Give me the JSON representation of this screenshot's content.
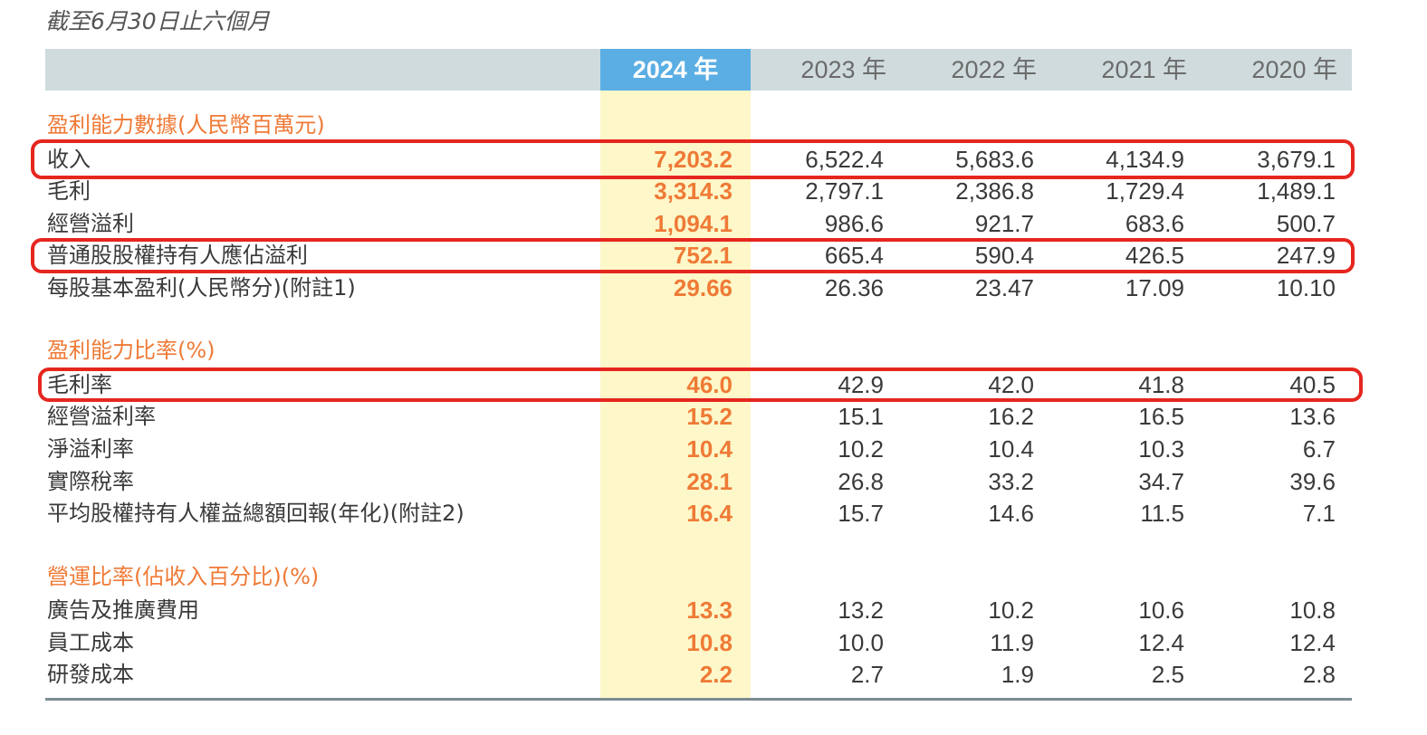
{
  "caption": "截至6月30日止六個月",
  "columns": [
    "2024 年",
    "2023 年",
    "2022 年",
    "2021 年",
    "2020 年"
  ],
  "colors": {
    "accent": "#ef7a36",
    "header_highlight": "#5aaee3",
    "header_bg": "#cfdbdd",
    "column_highlight": "#fdf7c9",
    "annotation": "#e5261f"
  },
  "sections": [
    {
      "title": "盈利能力數據(人民幣百萬元)",
      "rows": [
        {
          "label": "收入",
          "values": [
            "7,203.2",
            "6,522.4",
            "5,683.6",
            "4,134.9",
            "3,679.1"
          ]
        },
        {
          "label": "毛利",
          "values": [
            "3,314.3",
            "2,797.1",
            "2,386.8",
            "1,729.4",
            "1,489.1"
          ]
        },
        {
          "label": "經營溢利",
          "values": [
            "1,094.1",
            "986.6",
            "921.7",
            "683.6",
            "500.7"
          ]
        },
        {
          "label": "普通股股權持有人應佔溢利",
          "values": [
            "752.1",
            "665.4",
            "590.4",
            "426.5",
            "247.9"
          ]
        },
        {
          "label": "每股基本盈利(人民幣分)(附註1)",
          "values": [
            "29.66",
            "26.36",
            "23.47",
            "17.09",
            "10.10"
          ]
        }
      ]
    },
    {
      "title": "盈利能力比率(%)",
      "rows": [
        {
          "label": "毛利率",
          "values": [
            "46.0",
            "42.9",
            "42.0",
            "41.8",
            "40.5"
          ]
        },
        {
          "label": "經營溢利率",
          "values": [
            "15.2",
            "15.1",
            "16.2",
            "16.5",
            "13.6"
          ]
        },
        {
          "label": "淨溢利率",
          "values": [
            "10.4",
            "10.2",
            "10.4",
            "10.3",
            "6.7"
          ]
        },
        {
          "label": "實際稅率",
          "values": [
            "28.1",
            "26.8",
            "33.2",
            "34.7",
            "39.6"
          ]
        },
        {
          "label": "平均股權持有人權益總額回報(年化)(附註2)",
          "values": [
            "16.4",
            "15.7",
            "14.6",
            "11.5",
            "7.1"
          ]
        }
      ]
    },
    {
      "title": "營運比率(佔收入百分比)(%)",
      "rows": [
        {
          "label": "廣告及推廣費用",
          "values": [
            "13.3",
            "13.2",
            "10.2",
            "10.6",
            "10.8"
          ]
        },
        {
          "label": "員工成本",
          "values": [
            "10.8",
            "10.0",
            "11.9",
            "12.4",
            "12.4"
          ]
        },
        {
          "label": "研發成本",
          "values": [
            "2.2",
            "2.7",
            "1.9",
            "2.5",
            "2.8"
          ]
        }
      ]
    }
  ]
}
